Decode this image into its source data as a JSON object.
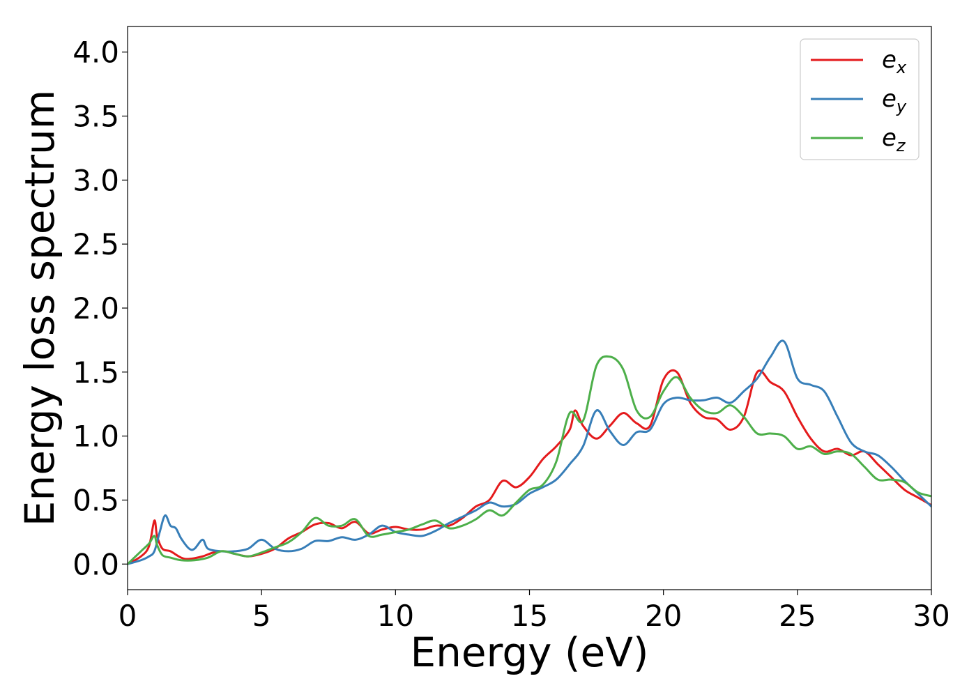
{
  "chart_data": {
    "type": "line",
    "title": "",
    "xlabel": "Energy (eV)",
    "ylabel": "Energy loss spectrum",
    "xlim": [
      0,
      30
    ],
    "ylim": [
      -0.2,
      4.2
    ],
    "xticks": [
      0,
      5,
      10,
      15,
      20,
      25,
      30
    ],
    "xtick_labels": [
      "0",
      "5",
      "10",
      "15",
      "20",
      "25",
      "30"
    ],
    "yticks": [
      0.0,
      0.5,
      1.0,
      1.5,
      2.0,
      2.5,
      3.0,
      3.5,
      4.0
    ],
    "ytick_labels": [
      "0.0",
      "0.5",
      "1.0",
      "1.5",
      "2.0",
      "2.5",
      "3.0",
      "3.5",
      "4.0"
    ],
    "grid": false,
    "legend_position": "top-right",
    "series": [
      {
        "name": "e_x",
        "legend_base": "e",
        "legend_sub": "x",
        "color": "#e41a1c",
        "x": [
          0,
          0.5,
          0.8,
          1.0,
          1.1,
          1.3,
          1.6,
          2.0,
          2.3,
          2.8,
          3.2,
          3.6,
          4.0,
          4.5,
          5.0,
          5.5,
          6.0,
          6.5,
          7.0,
          7.5,
          8.0,
          8.5,
          9.0,
          9.5,
          10.0,
          10.5,
          11.0,
          11.5,
          12.0,
          12.5,
          13.0,
          13.5,
          14.0,
          14.5,
          15.0,
          15.5,
          16.0,
          16.5,
          16.7,
          17.0,
          17.5,
          18.0,
          18.5,
          19.0,
          19.5,
          20.0,
          20.5,
          21.0,
          21.5,
          22.0,
          22.5,
          23.0,
          23.5,
          24.0,
          24.5,
          25.0,
          25.5,
          26.0,
          26.5,
          27.0,
          27.5,
          28.0,
          28.5,
          29.0,
          29.5,
          30.0
        ],
        "y": [
          0.0,
          0.06,
          0.14,
          0.34,
          0.22,
          0.12,
          0.1,
          0.05,
          0.04,
          0.06,
          0.09,
          0.1,
          0.08,
          0.06,
          0.08,
          0.12,
          0.2,
          0.25,
          0.31,
          0.32,
          0.28,
          0.33,
          0.24,
          0.27,
          0.29,
          0.27,
          0.27,
          0.3,
          0.3,
          0.36,
          0.45,
          0.5,
          0.65,
          0.6,
          0.68,
          0.82,
          0.92,
          1.05,
          1.2,
          1.08,
          0.98,
          1.08,
          1.18,
          1.1,
          1.08,
          1.44,
          1.5,
          1.26,
          1.15,
          1.13,
          1.05,
          1.15,
          1.5,
          1.42,
          1.35,
          1.15,
          0.98,
          0.88,
          0.9,
          0.85,
          0.88,
          0.78,
          0.68,
          0.58,
          0.52,
          0.46
        ]
      },
      {
        "name": "e_y",
        "legend_base": "e",
        "legend_sub": "y",
        "color": "#377eb8",
        "x": [
          0,
          0.5,
          0.8,
          1.0,
          1.2,
          1.4,
          1.6,
          1.8,
          2.0,
          2.3,
          2.5,
          2.8,
          3.0,
          3.5,
          4.0,
          4.5,
          5.0,
          5.5,
          6.0,
          6.5,
          7.0,
          7.5,
          8.0,
          8.5,
          9.0,
          9.5,
          10.0,
          10.5,
          11.0,
          11.5,
          12.0,
          12.5,
          13.0,
          13.5,
          14.0,
          14.5,
          15.0,
          15.5,
          16.0,
          16.5,
          17.0,
          17.5,
          18.0,
          18.5,
          19.0,
          19.5,
          20.0,
          20.5,
          21.0,
          21.5,
          22.0,
          22.5,
          23.0,
          23.5,
          24.0,
          24.5,
          25.0,
          25.5,
          26.0,
          26.5,
          27.0,
          27.5,
          28.0,
          28.5,
          29.0,
          29.5,
          30.0
        ],
        "y": [
          0.0,
          0.03,
          0.06,
          0.1,
          0.25,
          0.38,
          0.3,
          0.28,
          0.2,
          0.12,
          0.12,
          0.19,
          0.12,
          0.1,
          0.1,
          0.12,
          0.19,
          0.12,
          0.1,
          0.12,
          0.18,
          0.18,
          0.21,
          0.19,
          0.23,
          0.3,
          0.25,
          0.23,
          0.22,
          0.26,
          0.32,
          0.37,
          0.42,
          0.48,
          0.45,
          0.47,
          0.55,
          0.6,
          0.66,
          0.78,
          0.92,
          1.2,
          1.04,
          0.93,
          1.03,
          1.05,
          1.25,
          1.3,
          1.28,
          1.28,
          1.3,
          1.26,
          1.35,
          1.45,
          1.62,
          1.74,
          1.45,
          1.4,
          1.35,
          1.15,
          0.95,
          0.88,
          0.85,
          0.76,
          0.65,
          0.55,
          0.45
        ]
      },
      {
        "name": "e_z",
        "legend_base": "e",
        "legend_sub": "z",
        "color": "#4daf4a",
        "x": [
          0,
          0.5,
          0.8,
          1.0,
          1.1,
          1.3,
          1.6,
          2.0,
          2.5,
          3.0,
          3.5,
          4.0,
          4.5,
          5.0,
          5.5,
          6.0,
          6.5,
          7.0,
          7.5,
          8.0,
          8.5,
          9.0,
          9.5,
          10.0,
          10.5,
          11.0,
          11.5,
          12.0,
          12.5,
          13.0,
          13.5,
          14.0,
          14.5,
          15.0,
          15.5,
          16.0,
          16.5,
          17.0,
          17.5,
          18.0,
          18.5,
          19.0,
          19.5,
          20.0,
          20.5,
          21.0,
          21.5,
          22.0,
          22.5,
          23.0,
          23.5,
          24.0,
          24.5,
          25.0,
          25.5,
          26.0,
          26.5,
          27.0,
          27.5,
          28.0,
          28.5,
          29.0,
          29.5,
          30.0
        ],
        "y": [
          0.0,
          0.1,
          0.16,
          0.22,
          0.15,
          0.07,
          0.05,
          0.03,
          0.03,
          0.05,
          0.1,
          0.08,
          0.06,
          0.09,
          0.13,
          0.17,
          0.25,
          0.36,
          0.3,
          0.3,
          0.35,
          0.22,
          0.23,
          0.25,
          0.27,
          0.31,
          0.34,
          0.28,
          0.3,
          0.35,
          0.42,
          0.38,
          0.48,
          0.58,
          0.62,
          0.8,
          1.18,
          1.12,
          1.55,
          1.62,
          1.52,
          1.2,
          1.15,
          1.35,
          1.46,
          1.3,
          1.2,
          1.18,
          1.24,
          1.15,
          1.02,
          1.02,
          1.0,
          0.9,
          0.92,
          0.86,
          0.88,
          0.86,
          0.76,
          0.66,
          0.66,
          0.64,
          0.56,
          0.53
        ]
      }
    ]
  }
}
